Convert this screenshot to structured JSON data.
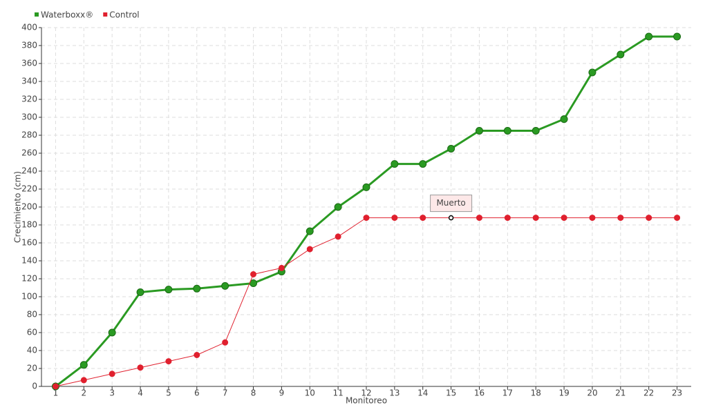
{
  "chart_data": {
    "type": "line",
    "x_label": "Monitoreo",
    "y_label": "Crecimiento (cm)",
    "categories": [
      "1",
      "2",
      "3",
      "4",
      "5",
      "6",
      "7",
      "8",
      "9",
      "10",
      "11",
      "12",
      "13",
      "14",
      "15",
      "16",
      "17",
      "18",
      "19",
      "20",
      "21",
      "22",
      "23"
    ],
    "series": [
      {
        "name": "Waterboxx®",
        "color": "#2a9a22",
        "values": [
          0,
          24,
          60,
          105,
          108,
          109,
          112,
          115,
          128,
          173,
          200,
          222,
          248,
          248,
          265,
          285,
          285,
          285,
          298,
          350,
          370,
          390,
          390
        ]
      },
      {
        "name": "Control",
        "color": "#e0202e",
        "values": [
          0,
          7,
          14,
          21,
          28,
          35,
          49,
          125,
          132,
          153,
          167,
          188,
          188,
          188,
          188,
          188,
          188,
          188,
          188,
          188,
          188,
          188,
          188
        ]
      }
    ],
    "annotations": [
      {
        "text": "Muerto",
        "x": "15",
        "series": "Control"
      }
    ],
    "ylim": [
      0,
      400
    ],
    "yticks": [
      0,
      20,
      40,
      60,
      80,
      100,
      120,
      140,
      160,
      180,
      200,
      220,
      240,
      260,
      280,
      300,
      320,
      340,
      360,
      380,
      400
    ],
    "grid": true,
    "legend": "top-left"
  }
}
